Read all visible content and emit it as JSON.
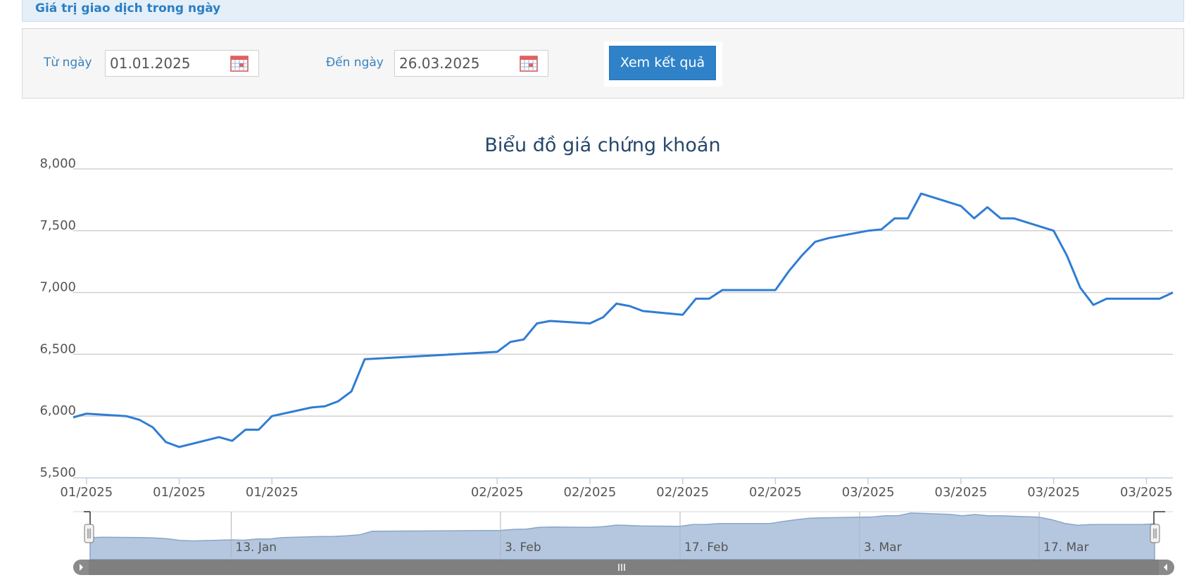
{
  "section": {
    "title": "Giá trị giao dịch trong ngày"
  },
  "filter": {
    "from_label": "Từ ngày",
    "from_value": "01.01.2025",
    "to_label": "Đến ngày",
    "to_value": "26.03.2025",
    "submit_label": "Xem kết quả",
    "calendar_icon": "calendar-icon"
  },
  "colors": {
    "accent": "#2f82c8",
    "line": "#2f7dd4",
    "navigator_fill": "#b5c7df",
    "scrollbar": "#808080"
  },
  "chart_data": {
    "type": "line",
    "title": "Biểu đồ giá chứng khoán",
    "ylim": [
      5500,
      8000
    ],
    "yticks": [
      "8,000",
      "7,500",
      "7,000",
      "6,500",
      "6,000",
      "5,500"
    ],
    "ytick_values": [
      8000,
      7500,
      7000,
      6500,
      6000,
      5500
    ],
    "xticks": [
      "01/2025",
      "01/2025",
      "01/2025",
      "02/2025",
      "02/2025",
      "02/2025",
      "02/2025",
      "03/2025",
      "03/2025",
      "03/2025",
      "03/2025"
    ],
    "xtick_dates": [
      "2025-01-03",
      "2025-01-10",
      "2025-01-17",
      "2025-02-03",
      "2025-02-10",
      "2025-02-17",
      "2025-02-24",
      "2025-03-03",
      "2025-03-10",
      "2025-03-17",
      "2025-03-24"
    ],
    "grid": true,
    "series": [
      {
        "x": [
          "2025-01-02",
          "2025-01-03",
          "2025-01-06",
          "2025-01-07",
          "2025-01-08",
          "2025-01-09",
          "2025-01-10",
          "2025-01-13",
          "2025-01-14",
          "2025-01-15",
          "2025-01-16",
          "2025-01-17",
          "2025-01-20",
          "2025-01-21",
          "2025-01-22",
          "2025-01-23",
          "2025-01-24",
          "2025-02-03",
          "2025-02-04",
          "2025-02-05",
          "2025-02-06",
          "2025-02-07",
          "2025-02-10",
          "2025-02-11",
          "2025-02-12",
          "2025-02-13",
          "2025-02-14",
          "2025-02-17",
          "2025-02-18",
          "2025-02-19",
          "2025-02-20",
          "2025-02-21",
          "2025-02-24",
          "2025-02-25",
          "2025-02-26",
          "2025-02-27",
          "2025-02-28",
          "2025-03-03",
          "2025-03-04",
          "2025-03-05",
          "2025-03-06",
          "2025-03-07",
          "2025-03-10",
          "2025-03-11",
          "2025-03-12",
          "2025-03-13",
          "2025-03-14",
          "2025-03-17",
          "2025-03-18",
          "2025-03-19",
          "2025-03-20",
          "2025-03-21",
          "2025-03-24",
          "2025-03-25",
          "2025-03-26"
        ],
        "values": [
          5990,
          6020,
          6000,
          5970,
          5910,
          5790,
          5750,
          5830,
          5800,
          5890,
          5890,
          6000,
          6070,
          6080,
          6120,
          6200,
          6460,
          6520,
          6600,
          6620,
          6750,
          6770,
          6750,
          6800,
          6910,
          6890,
          6850,
          6820,
          6950,
          6950,
          7020,
          7020,
          7020,
          7170,
          7300,
          7410,
          7440,
          7500,
          7510,
          7600,
          7600,
          7800,
          7700,
          7600,
          7690,
          7600,
          7600,
          7500,
          7300,
          7040,
          6900,
          6950,
          6950,
          6950,
          7000
        ]
      }
    ],
    "navigator": {
      "labels": [
        "13. Jan",
        "3. Feb",
        "17. Feb",
        "3. Mar",
        "17. Mar"
      ],
      "label_dates": [
        "2025-01-13",
        "2025-02-03",
        "2025-02-17",
        "2025-03-03",
        "2025-03-17"
      ],
      "scroll_handle_icon": "grip-icon",
      "left_arrow_icon": "arrow-left-icon",
      "right_arrow_icon": "arrow-right-icon"
    }
  }
}
